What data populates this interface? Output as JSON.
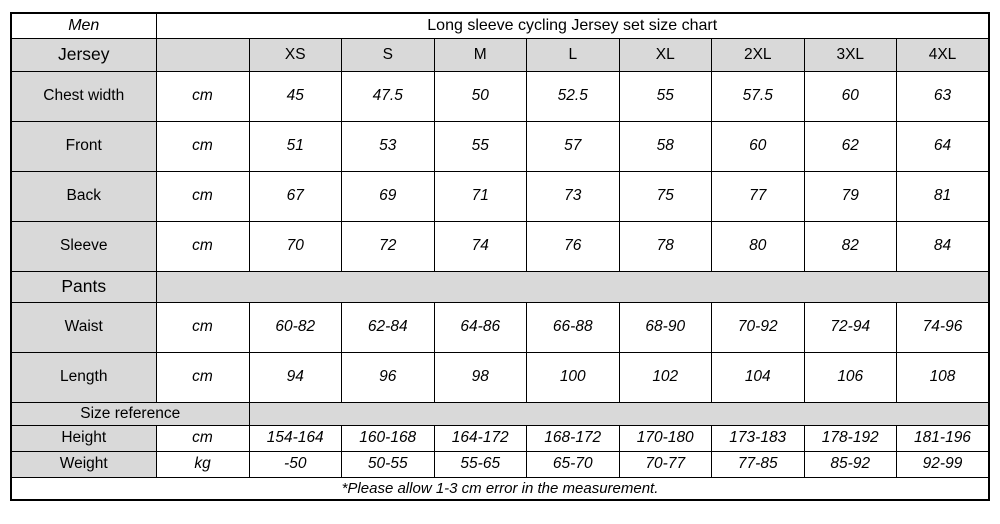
{
  "table": {
    "gender": "Men",
    "title": "Long sleeve cycling Jersey set size chart",
    "colors": {
      "header_bg": "#d9d9d9",
      "border": "#000000",
      "bg": "#ffffff"
    },
    "rows": [
      {
        "type": "size-header",
        "label": "Jersey",
        "cells": [
          "XS",
          "S",
          "M",
          "L",
          "XL",
          "2XL",
          "3XL",
          "4XL"
        ]
      },
      {
        "type": "data",
        "label": "Chest width",
        "unit": "cm",
        "values": [
          "45",
          "47.5",
          "50",
          "52.5",
          "55",
          "57.5",
          "60",
          "63"
        ]
      },
      {
        "type": "data",
        "label": "Front",
        "unit": "cm",
        "values": [
          "51",
          "53",
          "55",
          "57",
          "58",
          "60",
          "62",
          "64"
        ]
      },
      {
        "type": "data",
        "label": "Back",
        "unit": "cm",
        "values": [
          "67",
          "69",
          "71",
          "73",
          "75",
          "77",
          "79",
          "81"
        ]
      },
      {
        "type": "data",
        "label": "Sleeve",
        "unit": "cm",
        "values": [
          "70",
          "72",
          "74",
          "76",
          "78",
          "80",
          "82",
          "84"
        ]
      },
      {
        "type": "section",
        "label": "Pants",
        "label_span": 1
      },
      {
        "type": "data",
        "label": "Waist",
        "unit": "cm",
        "values": [
          "60-82",
          "62-84",
          "64-86",
          "66-88",
          "68-90",
          "70-92",
          "72-94",
          "74-96"
        ]
      },
      {
        "type": "data",
        "label": "Length",
        "unit": "cm",
        "values": [
          "94",
          "96",
          "98",
          "100",
          "102",
          "104",
          "106",
          "108"
        ]
      },
      {
        "type": "section",
        "label": "Size reference",
        "label_span": 2,
        "compact": true
      },
      {
        "type": "data",
        "label": "Height",
        "unit": "cm",
        "compact": true,
        "values": [
          "154-164",
          "160-168",
          "164-172",
          "168-172",
          "170-180",
          "173-183",
          "178-192",
          "181-196"
        ]
      },
      {
        "type": "data",
        "label": "Weight",
        "unit": "kg",
        "compact": true,
        "values": [
          "-50",
          "50-55",
          "55-65",
          "65-70",
          "70-77",
          "77-85",
          "85-92",
          "92-99"
        ]
      },
      {
        "type": "note",
        "text": "*Please allow 1-3 cm error in the measurement."
      }
    ]
  },
  "chart_data": {
    "type": "table",
    "title": "Long sleeve cycling Jersey set size chart",
    "gender": "Men",
    "sizes": [
      "XS",
      "S",
      "M",
      "L",
      "XL",
      "2XL",
      "3XL",
      "4XL"
    ],
    "jersey": {
      "chest_width_cm": [
        45,
        47.5,
        50,
        52.5,
        55,
        57.5,
        60,
        63
      ],
      "front_cm": [
        51,
        53,
        55,
        57,
        58,
        60,
        62,
        64
      ],
      "back_cm": [
        67,
        69,
        71,
        73,
        75,
        77,
        79,
        81
      ],
      "sleeve_cm": [
        70,
        72,
        74,
        76,
        78,
        80,
        82,
        84
      ]
    },
    "pants": {
      "waist_cm": [
        "60-82",
        "62-84",
        "64-86",
        "66-88",
        "68-90",
        "70-92",
        "72-94",
        "74-96"
      ],
      "length_cm": [
        94,
        96,
        98,
        100,
        102,
        104,
        106,
        108
      ]
    },
    "size_reference": {
      "height_cm": [
        "154-164",
        "160-168",
        "164-172",
        "168-172",
        "170-180",
        "173-183",
        "178-192",
        "181-196"
      ],
      "weight_kg": [
        "-50",
        "50-55",
        "55-65",
        "65-70",
        "70-77",
        "77-85",
        "85-92",
        "92-99"
      ]
    },
    "note": "*Please allow 1-3 cm error in the measurement."
  }
}
